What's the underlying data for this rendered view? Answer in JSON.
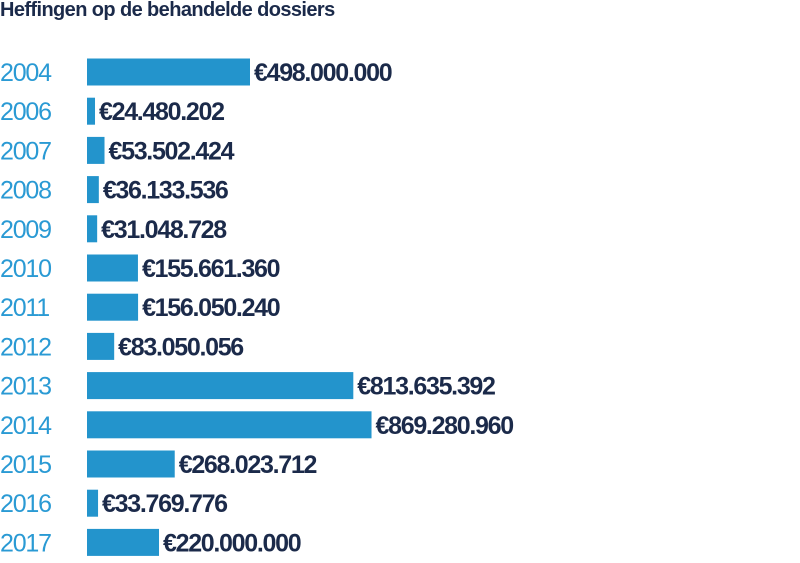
{
  "title": "Heffingen op de behandelde dossiers",
  "colors": {
    "bar": "#2394cc",
    "year": "#2a9ad4",
    "value": "#1b2a4a"
  },
  "chart_data": {
    "type": "bar",
    "orientation": "horizontal",
    "title": "Heffingen op de behandelde dossiers",
    "categories": [
      "2004",
      "2006",
      "2007",
      "2008",
      "2009",
      "2010",
      "2011",
      "2012",
      "2013",
      "2014",
      "2015",
      "2016",
      "2017"
    ],
    "values": [
      498000000,
      24480202,
      53502424,
      36133536,
      31048728,
      155661360,
      156050240,
      83050056,
      813635392,
      869280960,
      268023712,
      33769776,
      220000000
    ],
    "labels": [
      "€498.000.000",
      "€24.480.202",
      "€53.502.424",
      "€36.133.536",
      "€31.048.728",
      "€155.661.360",
      "€156.050.240",
      "€83.050.056",
      "€813.635.392",
      "€869.280.960",
      "€268.023.712",
      "€33.769.776",
      "€220.000.000"
    ],
    "grid": false
  }
}
